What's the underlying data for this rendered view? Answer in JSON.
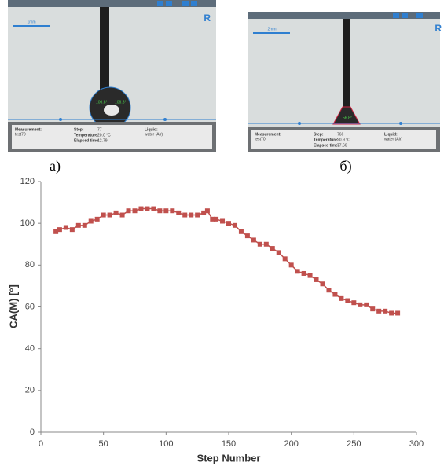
{
  "panels": [
    {
      "label": "а)",
      "scale": "1mm",
      "logo": "R",
      "angles": [
        "106.8°",
        "106.8°"
      ],
      "fields": [
        [
          "Measurement:",
          "test70"
        ],
        [
          "Step:",
          "77"
        ],
        [
          "Temperature:",
          "20.0 °C"
        ],
        [
          "Elapsed time:",
          "12.79"
        ],
        [
          "Liquid:",
          "water (Air)"
        ]
      ]
    },
    {
      "label": "б)",
      "scale": "2mm",
      "logo": "R",
      "angles": [
        "56.8°"
      ],
      "fields": [
        [
          "Measurement:",
          "test70"
        ],
        [
          "Step:",
          "766"
        ],
        [
          "Temperature:",
          "20.9 °C"
        ],
        [
          "Elapsed time:",
          "77.66"
        ],
        [
          "Liquid:",
          "water (Air)"
        ]
      ]
    }
  ],
  "chart_data": {
    "type": "line",
    "xlabel": "Step Number",
    "ylabel": "CA(M) [°]",
    "x": [
      12,
      15,
      20,
      25,
      30,
      35,
      40,
      45,
      50,
      55,
      60,
      65,
      70,
      75,
      80,
      85,
      90,
      95,
      100,
      105,
      110,
      115,
      120,
      125,
      130,
      133,
      137,
      140,
      145,
      150,
      155,
      160,
      165,
      170,
      175,
      180,
      185,
      190,
      195,
      200,
      205,
      210,
      215,
      220,
      225,
      230,
      235,
      240,
      245,
      250,
      255,
      260,
      265,
      270,
      275,
      280,
      285
    ],
    "series": [
      {
        "name": "CA(M)",
        "color": "#c0504d",
        "values": [
          96,
          97,
          98,
          97,
          99,
          99,
          101,
          102,
          104,
          104,
          105,
          104,
          106,
          106,
          107,
          107,
          107,
          106,
          106,
          106,
          105,
          104,
          104,
          104,
          105,
          106,
          102,
          102,
          101,
          100,
          99,
          96,
          94,
          92,
          90,
          90,
          88,
          86,
          83,
          80,
          77,
          76,
          75,
          73,
          71,
          68,
          66,
          64,
          63,
          62,
          61,
          61,
          59,
          58,
          58,
          57,
          57
        ]
      }
    ],
    "xlim": [
      0,
      300
    ],
    "xticks": [
      0,
      50,
      100,
      150,
      200,
      250,
      300
    ],
    "ylim": [
      0,
      120
    ],
    "yticks": [
      0,
      20,
      40,
      60,
      80,
      100,
      120
    ],
    "grid": false
  }
}
